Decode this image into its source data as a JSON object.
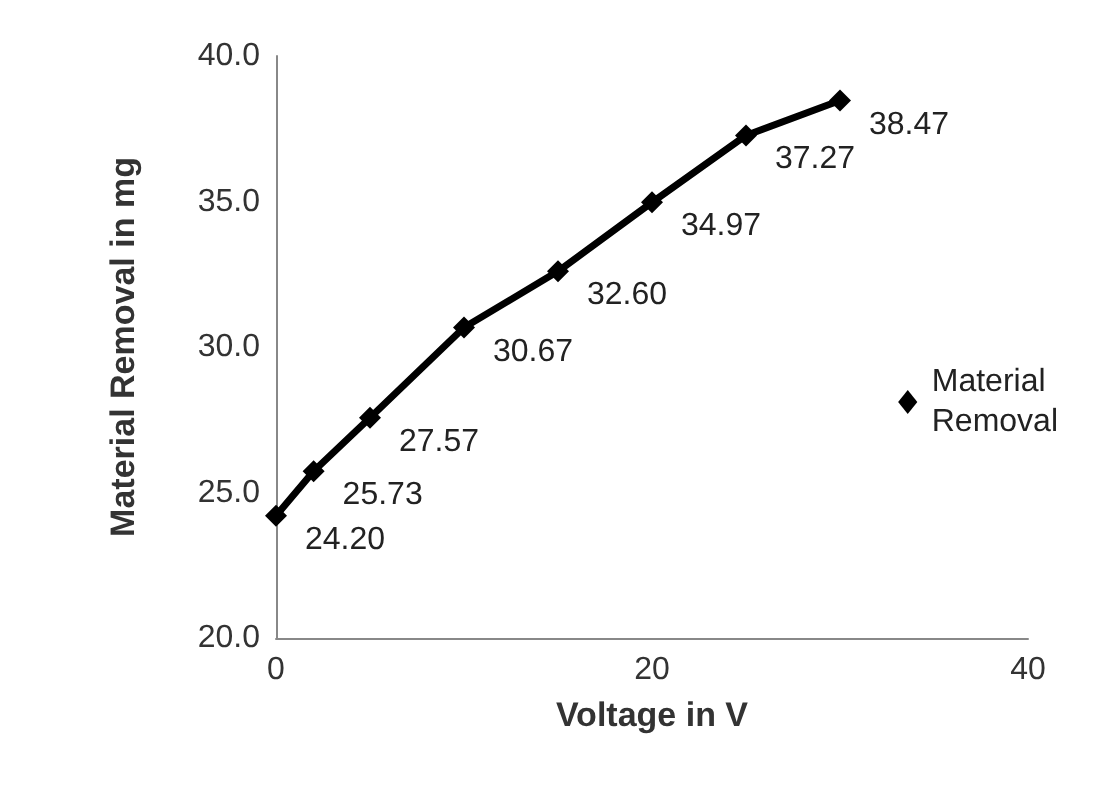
{
  "chart_data": {
    "type": "line",
    "xlabel": "Voltage in V",
    "ylabel": "Material Removal in mg",
    "x": [
      0,
      2,
      5,
      10,
      15,
      20,
      25,
      30
    ],
    "series": [
      {
        "name": "Material Removal",
        "color": "#000000",
        "values": [
          24.2,
          25.73,
          27.57,
          30.67,
          32.6,
          34.97,
          37.27,
          38.47
        ],
        "value_labels": [
          "24.20",
          "25.73",
          "27.57",
          "30.67",
          "32.60",
          "34.97",
          "37.27",
          "38.47"
        ]
      }
    ],
    "xlim": [
      0,
      40
    ],
    "xticks": [
      0,
      20,
      40
    ],
    "ylim": [
      20,
      40
    ],
    "yticks": [
      {
        "value": 20,
        "label": "20.0"
      },
      {
        "value": 25,
        "label": "25.0"
      },
      {
        "value": 30,
        "label": "30.0"
      },
      {
        "value": 35,
        "label": "35.0"
      },
      {
        "value": 40,
        "label": "40.0"
      }
    ],
    "grid": false,
    "legend": "right",
    "marker": "diamond",
    "line_style": "solid"
  }
}
